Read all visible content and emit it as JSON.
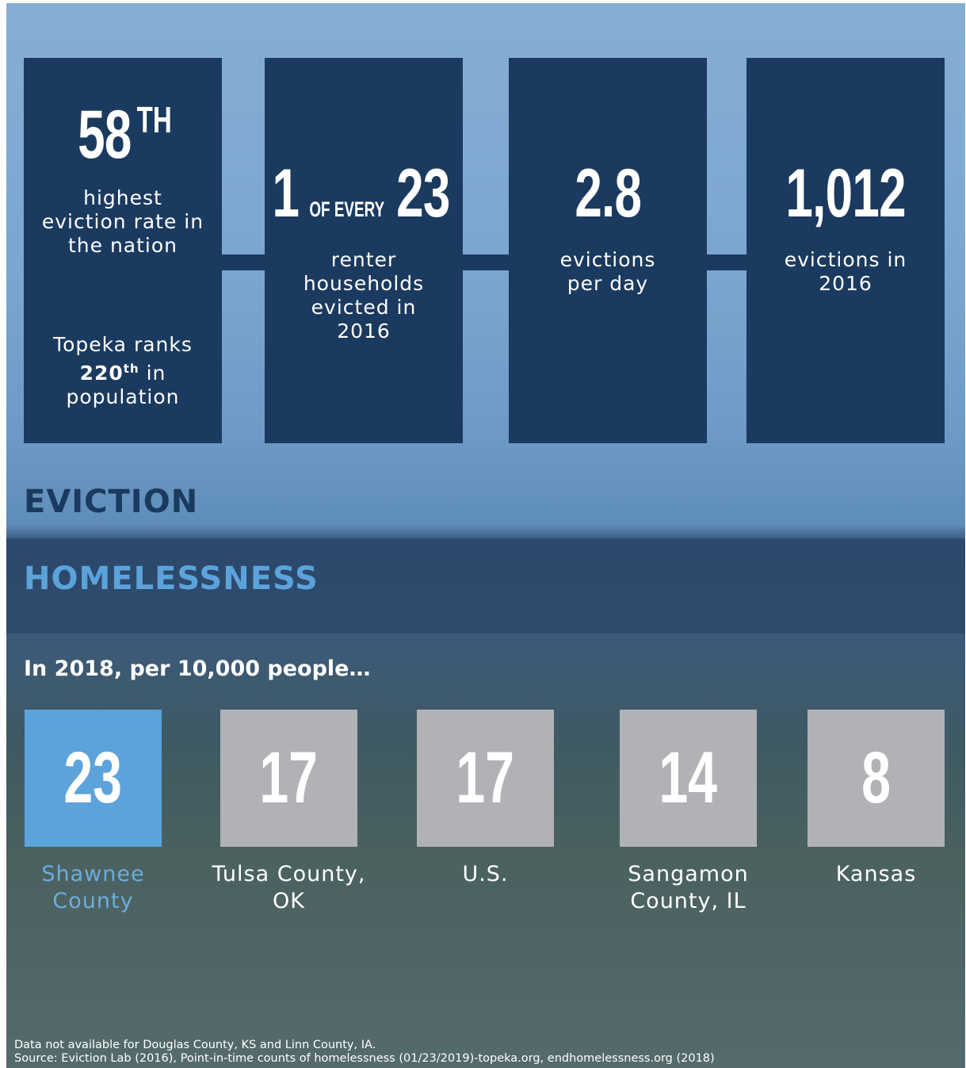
{
  "eviction": {
    "title": "EVICTION",
    "cards": [
      {
        "big": "58",
        "sup": "TH",
        "label": "highest eviction rate in the nation",
        "note": {
          "before": "Topeka ranks",
          "rank": "220",
          "rank_sup": "th",
          "after": "in population"
        }
      },
      {
        "big": "1",
        "mid": "OF EVERY",
        "big2": "23",
        "label": "renter households evicted in 2016"
      },
      {
        "big": "2.8",
        "label": "evictions per day"
      },
      {
        "big": "1,012",
        "label": "evictions in 2016"
      }
    ]
  },
  "homelessness": {
    "title": "HOMELESSNESS",
    "subtitle": "In 2018, per 10,000 people…",
    "items": [
      {
        "value": 23,
        "label": "Shawnee County",
        "color": "#5ba3da",
        "label_color": "#6aaee0"
      },
      {
        "value": 17,
        "label": "Tulsa County, OK",
        "color": "#b1b2b6",
        "label_color": "#ffffff"
      },
      {
        "value": 17,
        "label": "U.S.",
        "color": "#b1b2b6",
        "label_color": "#ffffff"
      },
      {
        "value": 14,
        "label": "Sangamon County, IL",
        "color": "#b1b2b6",
        "label_color": "#ffffff"
      },
      {
        "value": 8,
        "label": "Kansas",
        "color": "#b1b2b6",
        "label_color": "#ffffff"
      }
    ]
  },
  "footer": {
    "lines": [
      "Data not available for Douglas County, KS and Linn County, IA.",
      "Source: Eviction Lab (2016), Point-in-time counts of homelessness (01/23/2019)-topeka.org, endhomelessness.org (2018)"
    ]
  }
}
